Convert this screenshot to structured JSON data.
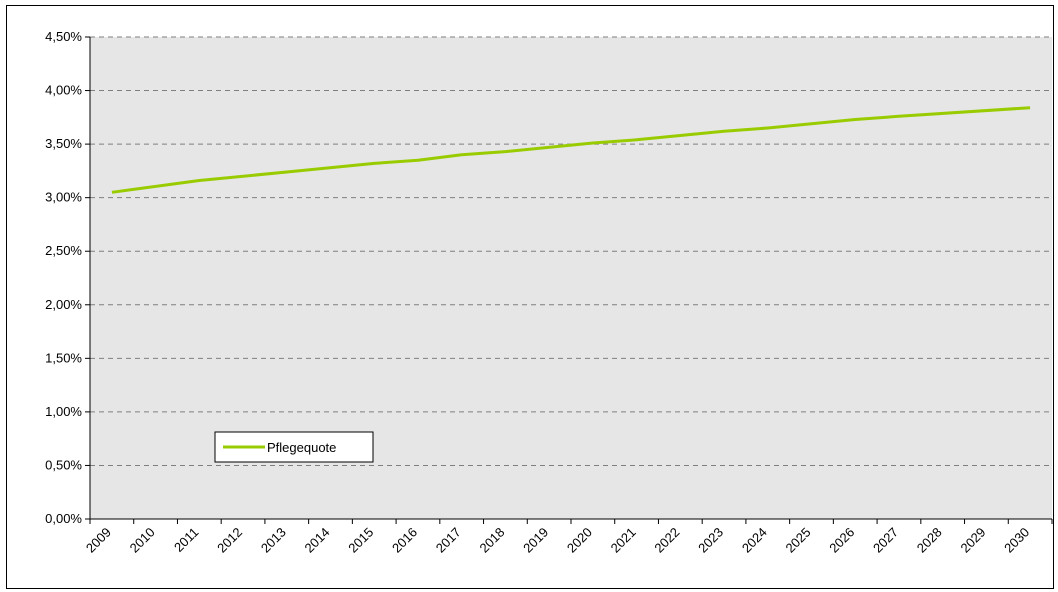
{
  "chart_data": {
    "type": "line",
    "title": "",
    "xlabel": "",
    "ylabel": "",
    "categories": [
      "2009",
      "2010",
      "2011",
      "2012",
      "2013",
      "2014",
      "2015",
      "2016",
      "2017",
      "2018",
      "2019",
      "2020",
      "2021",
      "2022",
      "2023",
      "2024",
      "2025",
      "2026",
      "2027",
      "2028",
      "2029",
      "2030"
    ],
    "series": [
      {
        "name": "Pflegequote",
        "color": "#99CC00",
        "x": [
          2009,
          2011,
          2013,
          2015,
          2016,
          2017,
          2018,
          2020,
          2021,
          2023,
          2024,
          2026,
          2027,
          2030
        ],
        "values": [
          3.05,
          3.16,
          3.24,
          3.32,
          3.35,
          3.4,
          3.43,
          3.51,
          3.54,
          3.62,
          3.65,
          3.73,
          3.76,
          3.84
        ]
      }
    ],
    "ylim": [
      0,
      4.5
    ],
    "y_ticks": [
      "0,00%",
      "0,50%",
      "1,00%",
      "1,50%",
      "2,00%",
      "2,50%",
      "3,00%",
      "3,50%",
      "4,00%",
      "4,50%"
    ],
    "y_tick_values": [
      0,
      0.5,
      1,
      1.5,
      2,
      2.5,
      3,
      3.5,
      4,
      4.5
    ],
    "y_unit": "%",
    "grid": true,
    "grid_style": "dashed",
    "plot_background": "#E6E6E6",
    "legend": {
      "placement": "lower-left",
      "entries": [
        "Pflegequote"
      ]
    }
  }
}
